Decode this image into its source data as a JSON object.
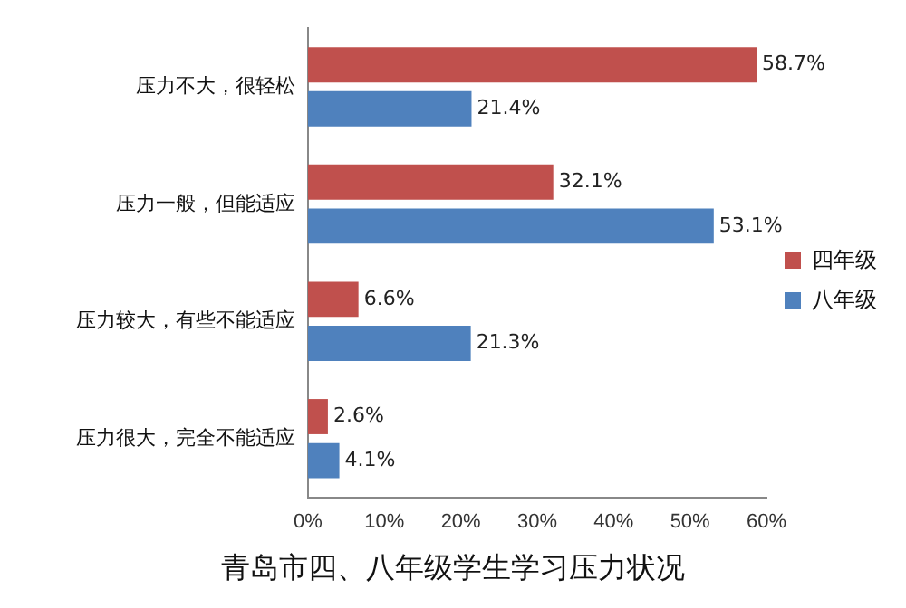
{
  "chart_data": {
    "type": "bar",
    "orientation": "horizontal",
    "title": "青岛市四、八年级学生学习压力状况",
    "categories": [
      "压力不大，很轻松",
      "压力一般，但能适应",
      "压力较大，有些不能适应",
      "压力很大，完全不能适应"
    ],
    "series": [
      {
        "name": "四年级",
        "color": "#c0504d",
        "values": [
          58.7,
          32.1,
          6.6,
          2.6
        ],
        "value_labels": [
          "58.7%",
          "32.1%",
          "6.6%",
          "2.6%"
        ]
      },
      {
        "name": "八年级",
        "color": "#4f81bd",
        "values": [
          21.4,
          53.1,
          21.3,
          4.1
        ],
        "value_labels": [
          "21.4%",
          "53.1%",
          "21.3%",
          "4.1%"
        ]
      }
    ],
    "xlim": [
      0,
      60
    ],
    "xticks": [
      {
        "value": 0,
        "label": "0%"
      },
      {
        "value": 10,
        "label": "10%"
      },
      {
        "value": 20,
        "label": "20%"
      },
      {
        "value": 30,
        "label": "30%"
      },
      {
        "value": 40,
        "label": "40%"
      },
      {
        "value": 50,
        "label": "50%"
      },
      {
        "value": 60,
        "label": "60%"
      }
    ],
    "grid": false,
    "legend": "right"
  }
}
